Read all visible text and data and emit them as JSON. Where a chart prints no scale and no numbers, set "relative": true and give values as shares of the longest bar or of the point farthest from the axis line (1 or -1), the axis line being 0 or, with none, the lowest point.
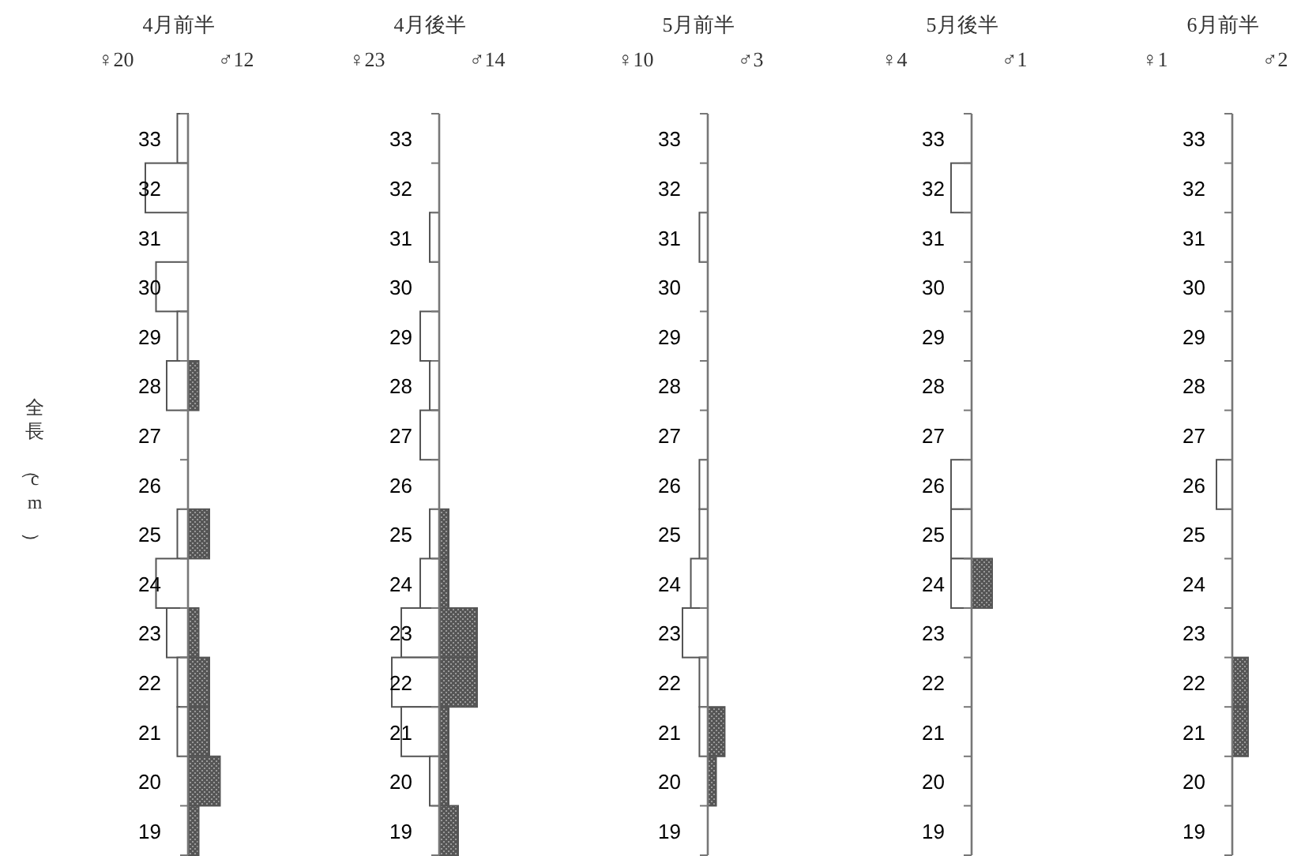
{
  "chart_data": [
    {
      "type": "bar",
      "orientation": "horizontal",
      "relative": true,
      "title": "4月前半",
      "ylabel": "全長（cm）",
      "annotations": [
        "♀20",
        "♂12"
      ],
      "categories": [
        "33",
        "32",
        "31",
        "30",
        "29",
        "28",
        "27",
        "26",
        "25",
        "24",
        "23",
        "22",
        "21",
        "20",
        "19"
      ],
      "series": [
        {
          "color": "#ffffff",
          "values": [
            -0.25,
            -1,
            null,
            -0.75,
            -0.25,
            -0.5,
            null,
            null,
            -0.25,
            -0.75,
            -0.5,
            -0.25,
            -0.25,
            null,
            null
          ]
        },
        {
          "color": "#555555",
          "values": [
            null,
            null,
            null,
            null,
            null,
            0.25,
            null,
            null,
            0.5,
            null,
            0.25,
            0.5,
            0.5,
            0.75,
            0.25
          ]
        }
      ]
    },
    {
      "type": "bar",
      "orientation": "horizontal",
      "relative": true,
      "title": "4月後半",
      "annotations": [
        "♀23",
        "♂14"
      ],
      "categories": [
        "33",
        "32",
        "31",
        "30",
        "29",
        "28",
        "27",
        "26",
        "25",
        "24",
        "23",
        "22",
        "21",
        "20",
        "19"
      ],
      "series": [
        {
          "color": "#ffffff",
          "values": [
            null,
            null,
            -0.2,
            null,
            -0.4,
            -0.2,
            -0.4,
            null,
            -0.2,
            -0.4,
            -0.8,
            -1,
            -0.8,
            -0.2,
            null
          ]
        },
        {
          "color": "#555555",
          "values": [
            null,
            null,
            null,
            null,
            null,
            null,
            null,
            null,
            0.2,
            0.2,
            0.8,
            0.8,
            0.2,
            0.2,
            0.4
          ]
        }
      ]
    },
    {
      "type": "bar",
      "orientation": "horizontal",
      "relative": true,
      "title": "5月前半",
      "annotations": [
        "♀10",
        "♂3"
      ],
      "categories": [
        "33",
        "32",
        "31",
        "30",
        "29",
        "28",
        "27",
        "26",
        "25",
        "24",
        "23",
        "22",
        "21",
        "20",
        "19"
      ],
      "series": [
        {
          "color": "#ffffff",
          "values": [
            null,
            null,
            -0.33,
            null,
            null,
            null,
            null,
            -0.33,
            -0.33,
            -0.67,
            -1,
            -0.33,
            -0.33,
            null,
            null
          ]
        },
        {
          "color": "#555555",
          "values": [
            null,
            null,
            null,
            null,
            null,
            null,
            null,
            null,
            null,
            null,
            null,
            null,
            0.67,
            0.33,
            null
          ]
        }
      ]
    },
    {
      "type": "bar",
      "orientation": "horizontal",
      "relative": true,
      "title": "5月後半",
      "annotations": [
        "♀4",
        "♂1"
      ],
      "categories": [
        "33",
        "32",
        "31",
        "30",
        "29",
        "28",
        "27",
        "26",
        "25",
        "24",
        "23",
        "22",
        "21",
        "20",
        "19"
      ],
      "series": [
        {
          "color": "#ffffff",
          "values": [
            null,
            -1,
            null,
            null,
            null,
            null,
            null,
            -1,
            -1,
            -1,
            null,
            null,
            null,
            null,
            null
          ]
        },
        {
          "color": "#555555",
          "values": [
            null,
            null,
            null,
            null,
            null,
            null,
            null,
            null,
            null,
            1,
            null,
            null,
            null,
            null,
            null
          ]
        }
      ]
    },
    {
      "type": "bar",
      "orientation": "horizontal",
      "relative": true,
      "title": "6月前半",
      "annotations": [
        "♀1",
        "♂2"
      ],
      "categories": [
        "33",
        "32",
        "31",
        "30",
        "29",
        "28",
        "27",
        "26",
        "25",
        "24",
        "23",
        "22",
        "21",
        "20",
        "19"
      ],
      "series": [
        {
          "color": "#ffffff",
          "values": [
            null,
            null,
            null,
            null,
            null,
            null,
            null,
            -1,
            null,
            null,
            null,
            null,
            null,
            null,
            null
          ]
        },
        {
          "color": "#555555",
          "values": [
            null,
            null,
            null,
            null,
            null,
            null,
            null,
            null,
            null,
            null,
            null,
            1,
            1,
            null,
            null
          ]
        }
      ]
    }
  ]
}
